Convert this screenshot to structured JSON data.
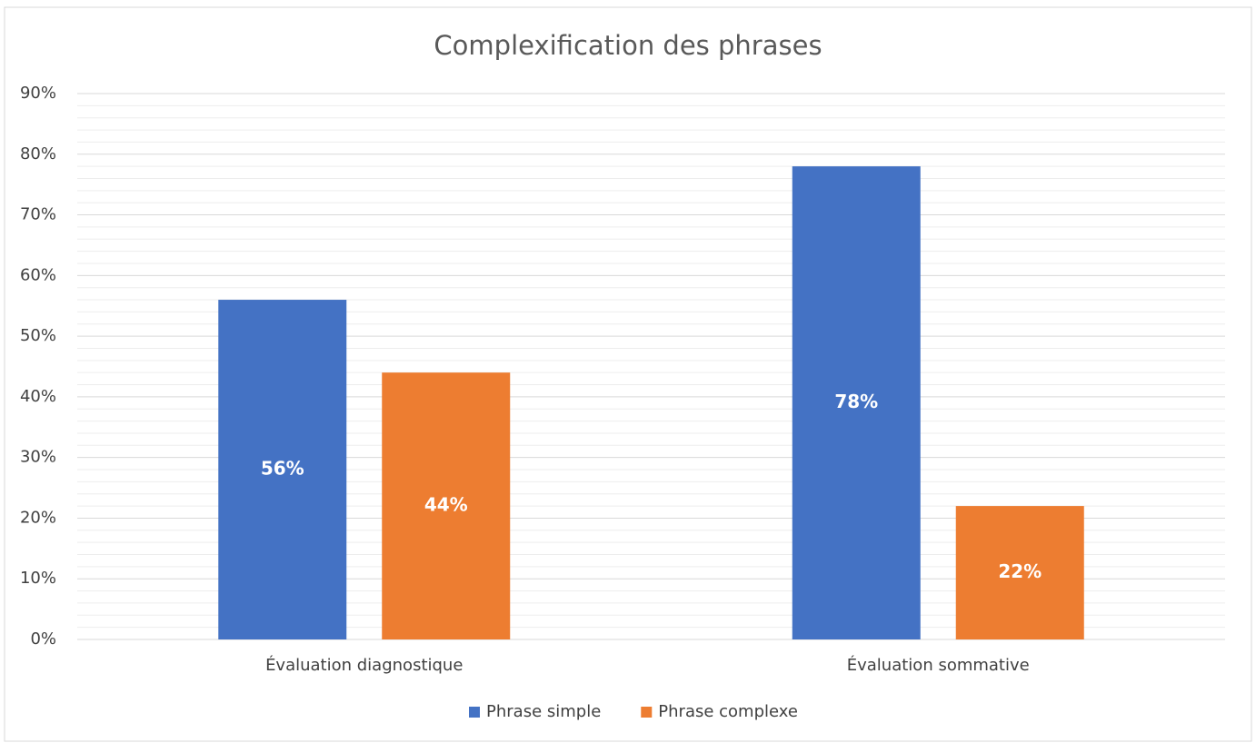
{
  "chart_data": {
    "type": "bar",
    "title": "Complexification des phrases",
    "categories": [
      "Évaluation diagnostique",
      "Évaluation sommative"
    ],
    "series": [
      {
        "name": "Phrase simple",
        "color": "#4472c4",
        "values": [
          56,
          78
        ],
        "value_labels": [
          "56%",
          "78%"
        ]
      },
      {
        "name": "Phrase complexe",
        "color": "#ed7d31",
        "values": [
          44,
          22
        ],
        "value_labels": [
          "44%",
          "22%"
        ]
      }
    ],
    "ylim": [
      0,
      90
    ],
    "yticks": [
      {
        "value": 0,
        "label": "0%"
      },
      {
        "value": 10,
        "label": "10%"
      },
      {
        "value": 20,
        "label": "20%"
      },
      {
        "value": 30,
        "label": "30%"
      },
      {
        "value": 40,
        "label": "40%"
      },
      {
        "value": 50,
        "label": "50%"
      },
      {
        "value": 60,
        "label": "60%"
      },
      {
        "value": 70,
        "label": "70%"
      },
      {
        "value": 80,
        "label": "80%"
      },
      {
        "value": 90,
        "label": "90%"
      }
    ],
    "minor_yticks": [
      2,
      4,
      6,
      8,
      12,
      14,
      16,
      18,
      22,
      24,
      26,
      28,
      32,
      34,
      36,
      38,
      42,
      44,
      46,
      48,
      52,
      54,
      56,
      58,
      62,
      64,
      66,
      68,
      72,
      74,
      76,
      78,
      82,
      84,
      86,
      88
    ],
    "grid": true,
    "legend": "bottom"
  }
}
